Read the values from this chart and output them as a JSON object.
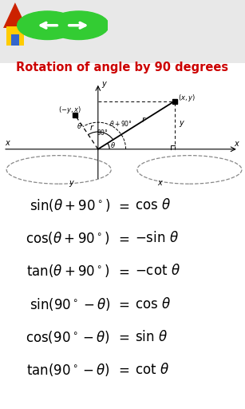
{
  "title": "Rotation of angle by 90 degrees",
  "title_color": "#cc0000",
  "title_fontsize": 10.5,
  "bg_color": "#ffffff",
  "outer_bg": "#e8e8e8",
  "formulas": [
    {
      "lhs": "\\sin(\\theta+90^\\circ)",
      "rhs": "\\cos\\,\\theta"
    },
    {
      "lhs": "\\cos(\\theta+90^\\circ)",
      "rhs": "-\\sin\\,\\theta"
    },
    {
      "lhs": "\\tan(\\theta+90^\\circ)",
      "rhs": "-\\cot\\,\\theta"
    },
    {
      "lhs": "\\sin(90^\\circ-\\theta)",
      "rhs": "\\cos\\,\\theta"
    },
    {
      "lhs": "\\cos(90^\\circ-\\theta)",
      "rhs": "\\sin\\,\\theta"
    },
    {
      "lhs": "\\tan(90^\\circ-\\theta)",
      "rhs": "\\cot\\,\\theta"
    }
  ],
  "formula_fontsize": 12
}
